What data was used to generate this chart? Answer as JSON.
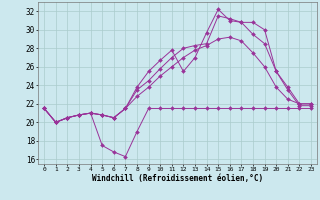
{
  "xlabel": "Windchill (Refroidissement éolien,°C)",
  "background_color": "#cce8ee",
  "grid_color": "#aacccc",
  "line_color": "#993399",
  "xlim": [
    -0.5,
    23.5
  ],
  "ylim": [
    15.5,
    33.0
  ],
  "yticks": [
    16,
    18,
    20,
    22,
    24,
    26,
    28,
    30,
    32
  ],
  "xticks": [
    0,
    1,
    2,
    3,
    4,
    5,
    6,
    7,
    8,
    9,
    10,
    11,
    12,
    13,
    14,
    15,
    16,
    17,
    18,
    19,
    20,
    21,
    22,
    23
  ],
  "line1_x": [
    0,
    1,
    2,
    3,
    4,
    5,
    6,
    7,
    8,
    9,
    10,
    11,
    12,
    13,
    14,
    15,
    16,
    17,
    18,
    19,
    20,
    21,
    22,
    23
  ],
  "line1_y": [
    21.5,
    20.0,
    20.5,
    20.8,
    21.0,
    17.5,
    16.8,
    16.3,
    19.0,
    21.5,
    21.5,
    21.5,
    21.5,
    21.5,
    21.5,
    21.5,
    21.5,
    21.5,
    21.5,
    21.5,
    21.5,
    21.5,
    21.5,
    21.5
  ],
  "line2_x": [
    0,
    1,
    2,
    3,
    4,
    5,
    6,
    7,
    8,
    9,
    10,
    11,
    12,
    13,
    14,
    15,
    16,
    17,
    18,
    19,
    20,
    21,
    22,
    23
  ],
  "line2_y": [
    21.5,
    20.0,
    20.5,
    20.8,
    21.0,
    20.8,
    20.5,
    21.5,
    23.8,
    25.5,
    26.7,
    27.8,
    25.5,
    27.0,
    29.7,
    32.2,
    31.0,
    30.8,
    30.8,
    30.0,
    25.5,
    23.8,
    22.0,
    22.0
  ],
  "line3_x": [
    0,
    1,
    2,
    3,
    4,
    5,
    6,
    7,
    8,
    9,
    10,
    11,
    12,
    13,
    14,
    15,
    16,
    17,
    18,
    19,
    20,
    21,
    22,
    23
  ],
  "line3_y": [
    21.5,
    20.0,
    20.5,
    20.8,
    21.0,
    20.8,
    20.5,
    21.5,
    23.5,
    24.5,
    25.8,
    27.0,
    28.0,
    28.3,
    28.5,
    31.5,
    31.2,
    30.8,
    29.5,
    28.5,
    25.5,
    23.5,
    21.8,
    21.8
  ],
  "line4_x": [
    0,
    1,
    2,
    3,
    4,
    5,
    6,
    7,
    8,
    9,
    10,
    11,
    12,
    13,
    14,
    15,
    16,
    17,
    18,
    19,
    20,
    21,
    22,
    23
  ],
  "line4_y": [
    21.5,
    20.0,
    20.5,
    20.8,
    21.0,
    20.8,
    20.5,
    21.5,
    22.8,
    23.8,
    25.0,
    26.0,
    27.0,
    27.8,
    28.3,
    29.0,
    29.2,
    28.8,
    27.5,
    26.0,
    23.8,
    22.5,
    22.0,
    22.0
  ]
}
